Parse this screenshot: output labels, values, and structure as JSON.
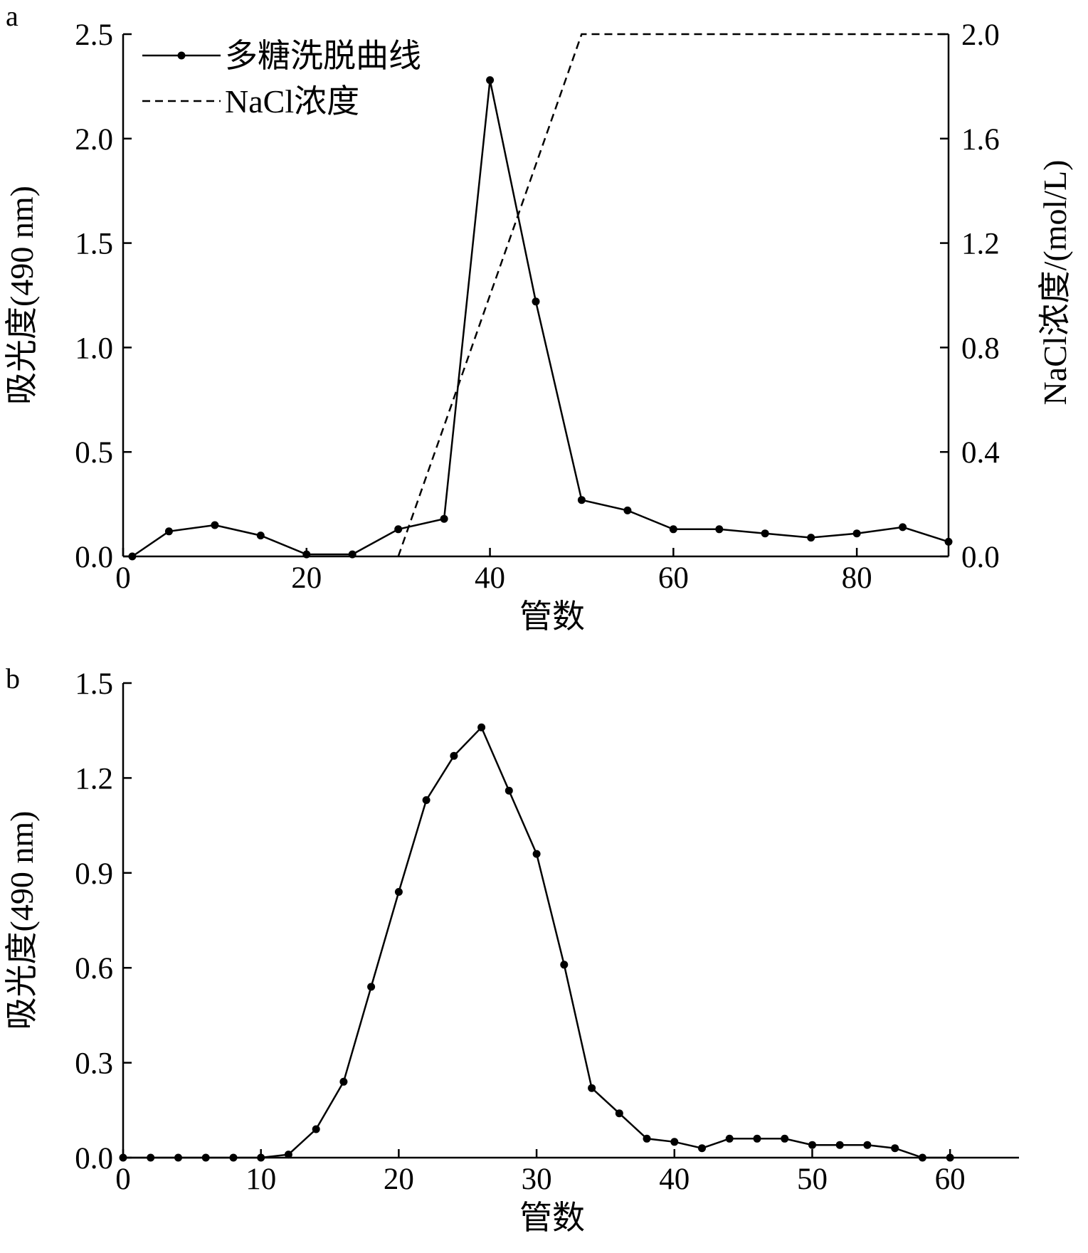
{
  "chart_data": [
    {
      "panel": "a",
      "type": "line",
      "xlabel": "管数",
      "ylabel": "吸光度(490 nm)",
      "y2label": "NaCl浓度/(mol/L)",
      "xlim": [
        0,
        90
      ],
      "ylim": [
        0,
        2.5
      ],
      "y2lim": [
        0,
        2.0
      ],
      "xticks": [
        "0",
        "20",
        "40",
        "60",
        "80"
      ],
      "yticks": [
        "0.0",
        "0.5",
        "1.0",
        "1.5",
        "2.0",
        "2.5"
      ],
      "y2ticks": [
        "0.0",
        "0.4",
        "0.8",
        "1.2",
        "1.6",
        "2.0"
      ],
      "grid": false,
      "legend_position": "top-left",
      "series": [
        {
          "name": "多糖洗脱曲线",
          "axis": "left",
          "style": "solid-with-markers",
          "x": [
            1,
            5,
            10,
            15,
            20,
            25,
            30,
            35,
            40,
            45,
            50,
            55,
            60,
            65,
            70,
            75,
            80,
            85,
            90
          ],
          "y": [
            0.0,
            0.12,
            0.15,
            0.1,
            0.01,
            0.01,
            0.13,
            0.18,
            2.28,
            1.22,
            0.27,
            0.22,
            0.13,
            0.13,
            0.11,
            0.09,
            0.11,
            0.14,
            0.07
          ]
        },
        {
          "name": "NaCl浓度",
          "axis": "right",
          "style": "dashed",
          "x": [
            30,
            50,
            90
          ],
          "y": [
            0.0,
            2.0,
            2.0
          ]
        }
      ]
    },
    {
      "panel": "b",
      "type": "line",
      "xlabel": "管数",
      "ylabel": "吸光度(490 nm)",
      "xlim": [
        0,
        65
      ],
      "ylim": [
        0,
        1.5
      ],
      "xticks": [
        "0",
        "10",
        "20",
        "30",
        "40",
        "50",
        "60"
      ],
      "yticks": [
        "0.0",
        "0.3",
        "0.6",
        "0.9",
        "1.2",
        "1.5"
      ],
      "grid": false,
      "series": [
        {
          "style": "solid-with-markers",
          "x": [
            0,
            2,
            4,
            6,
            8,
            10,
            12,
            14,
            16,
            18,
            20,
            22,
            24,
            26,
            28,
            30,
            32,
            34,
            36,
            38,
            40,
            42,
            44,
            46,
            48,
            50,
            52,
            54,
            56,
            58,
            60
          ],
          "y": [
            0.0,
            0.0,
            0.0,
            0.0,
            0.0,
            0.0,
            0.01,
            0.09,
            0.24,
            0.54,
            0.84,
            1.13,
            1.27,
            1.36,
            1.16,
            0.96,
            0.61,
            0.22,
            0.14,
            0.06,
            0.05,
            0.03,
            0.06,
            0.06,
            0.06,
            0.04,
            0.04,
            0.04,
            0.03,
            0.0,
            0.0
          ]
        }
      ]
    }
  ]
}
